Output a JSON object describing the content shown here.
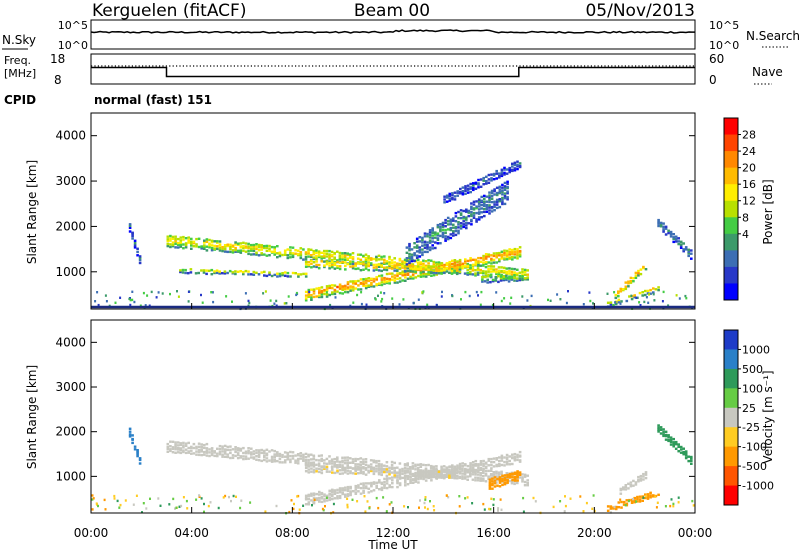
{
  "header": {
    "station": "Kerguelen (fitACF)",
    "beam": "Beam 00",
    "date": "05/Nov/2013"
  },
  "noise_panel": {
    "left_label": "N.Sky",
    "right_label": "N.Search",
    "ticks_left": [
      "10^5",
      "10^0"
    ],
    "ticks_right": [
      "10^5",
      "10^0"
    ]
  },
  "freq_panel": {
    "left_label_1": "Freq.",
    "left_label_2": "[MHz]",
    "right_label": "Nave",
    "ticks_left": [
      "18",
      "8"
    ],
    "ticks_right": [
      "60",
      "0"
    ]
  },
  "cpid": {
    "label": "CPID",
    "value": "normal (fast) 151"
  },
  "power_panel": {
    "ylabel": "Slant Range [km]",
    "yticks": [
      "4000",
      "3000",
      "2000",
      "1000"
    ],
    "colorbar_label": "Power [dB]",
    "colorbar_ticks": [
      "28",
      "24",
      "20",
      "16",
      "12",
      "8",
      "4"
    ],
    "colorbar_colors": [
      "#ff0000",
      "#ff4400",
      "#ff8800",
      "#ffbb00",
      "#ffee00",
      "#b8e000",
      "#44cc44",
      "#3c9a6a",
      "#3c6eb4",
      "#2838c8",
      "#0000ff"
    ]
  },
  "velocity_panel": {
    "ylabel": "Slant Range [km]",
    "yticks": [
      "4000",
      "3000",
      "2000",
      "1000"
    ],
    "colorbar_label": "Velocity [m s⁻¹]",
    "colorbar_ticks": [
      "1000",
      "500",
      "100",
      "25",
      "-25",
      "-100",
      "-500",
      "-1000"
    ],
    "colorbar_colors": [
      "#1e3cc8",
      "#2a80c8",
      "#2e9a5a",
      "#66cc44",
      "#c8c8c0",
      "#ffcc22",
      "#ff9900",
      "#ff5500",
      "#ff0000"
    ]
  },
  "xaxis": {
    "label": "Time UT",
    "ticks": [
      "00:00",
      "04:00",
      "08:00",
      "12:00",
      "16:00",
      "20:00",
      "00:00"
    ]
  },
  "chart_data": {
    "type": "heatmap",
    "title": "Kerguelen (fitACF) Beam 00 05/Nov/2013",
    "xlabel": "Time UT",
    "ylabel": "Slant Range [km]",
    "xlim_hours": [
      0,
      24
    ],
    "ylim_km": [
      180,
      4500
    ],
    "frequency_mhz": [
      {
        "from_hour": 0,
        "to_hour": 3,
        "value": 13.5
      },
      {
        "from_hour": 3,
        "to_hour": 17,
        "value": 10.5
      },
      {
        "from_hour": 17,
        "to_hour": 24,
        "value": 13.5
      }
    ],
    "power_db_scale": [
      0,
      30
    ],
    "velocity_ms_scale": [
      -1000,
      1000
    ],
    "power_features": [
      {
        "t0": 3.0,
        "t1": 17.3,
        "r0": 1700,
        "r1": 950,
        "width": 260,
        "power": 18
      },
      {
        "t0": 3.5,
        "t1": 8.5,
        "r0": 1050,
        "r1": 950,
        "width": 120,
        "power": 14
      },
      {
        "t0": 8.5,
        "t1": 17.0,
        "r0": 500,
        "r1": 1450,
        "width": 250,
        "power": 22
      },
      {
        "t0": 8.5,
        "t1": 14.5,
        "r0": 1200,
        "r1": 1050,
        "width": 180,
        "power": 20
      },
      {
        "t0": 12.5,
        "t1": 16.5,
        "r0": 1400,
        "r1": 2800,
        "width": 500,
        "power": 8
      },
      {
        "t0": 14.0,
        "t1": 17.0,
        "r0": 2600,
        "r1": 3400,
        "width": 200,
        "power": 6
      },
      {
        "t0": 15.5,
        "t1": 17.2,
        "r0": 850,
        "r1": 900,
        "width": 150,
        "power": 14
      },
      {
        "t0": 1.5,
        "t1": 1.9,
        "r0": 2000,
        "r1": 1300,
        "width": 200,
        "power": 6
      },
      {
        "t0": 20.8,
        "t1": 22.0,
        "r0": 500,
        "r1": 1150,
        "width": 160,
        "power": 22
      },
      {
        "t0": 20.5,
        "t1": 22.5,
        "r0": 300,
        "r1": 650,
        "width": 120,
        "power": 16
      },
      {
        "t0": 22.5,
        "t1": 23.8,
        "r0": 2100,
        "r1": 1400,
        "width": 200,
        "power": 8
      }
    ],
    "velocity_features": [
      {
        "t0": 3.0,
        "t1": 17.3,
        "r0": 1700,
        "r1": 950,
        "width": 280,
        "velocity": 0
      },
      {
        "t0": 8.5,
        "t1": 17.0,
        "r0": 500,
        "r1": 1450,
        "width": 250,
        "velocity": 0
      },
      {
        "t0": 8.5,
        "t1": 14.5,
        "r0": 1200,
        "r1": 1050,
        "width": 180,
        "velocity": -10
      },
      {
        "t0": 15.8,
        "t1": 17.0,
        "r0": 850,
        "r1": 1050,
        "width": 250,
        "velocity": -150
      },
      {
        "t0": 1.5,
        "t1": 1.9,
        "r0": 2000,
        "r1": 1400,
        "width": 200,
        "velocity": 900
      },
      {
        "t0": 20.5,
        "t1": 22.5,
        "r0": 300,
        "r1": 650,
        "width": 150,
        "velocity": -400
      },
      {
        "t0": 21.0,
        "t1": 22.0,
        "r0": 700,
        "r1": 1050,
        "width": 150,
        "velocity": 0
      },
      {
        "t0": 22.5,
        "t1": 23.8,
        "r0": 2100,
        "r1": 1400,
        "width": 200,
        "velocity": 150
      }
    ]
  }
}
